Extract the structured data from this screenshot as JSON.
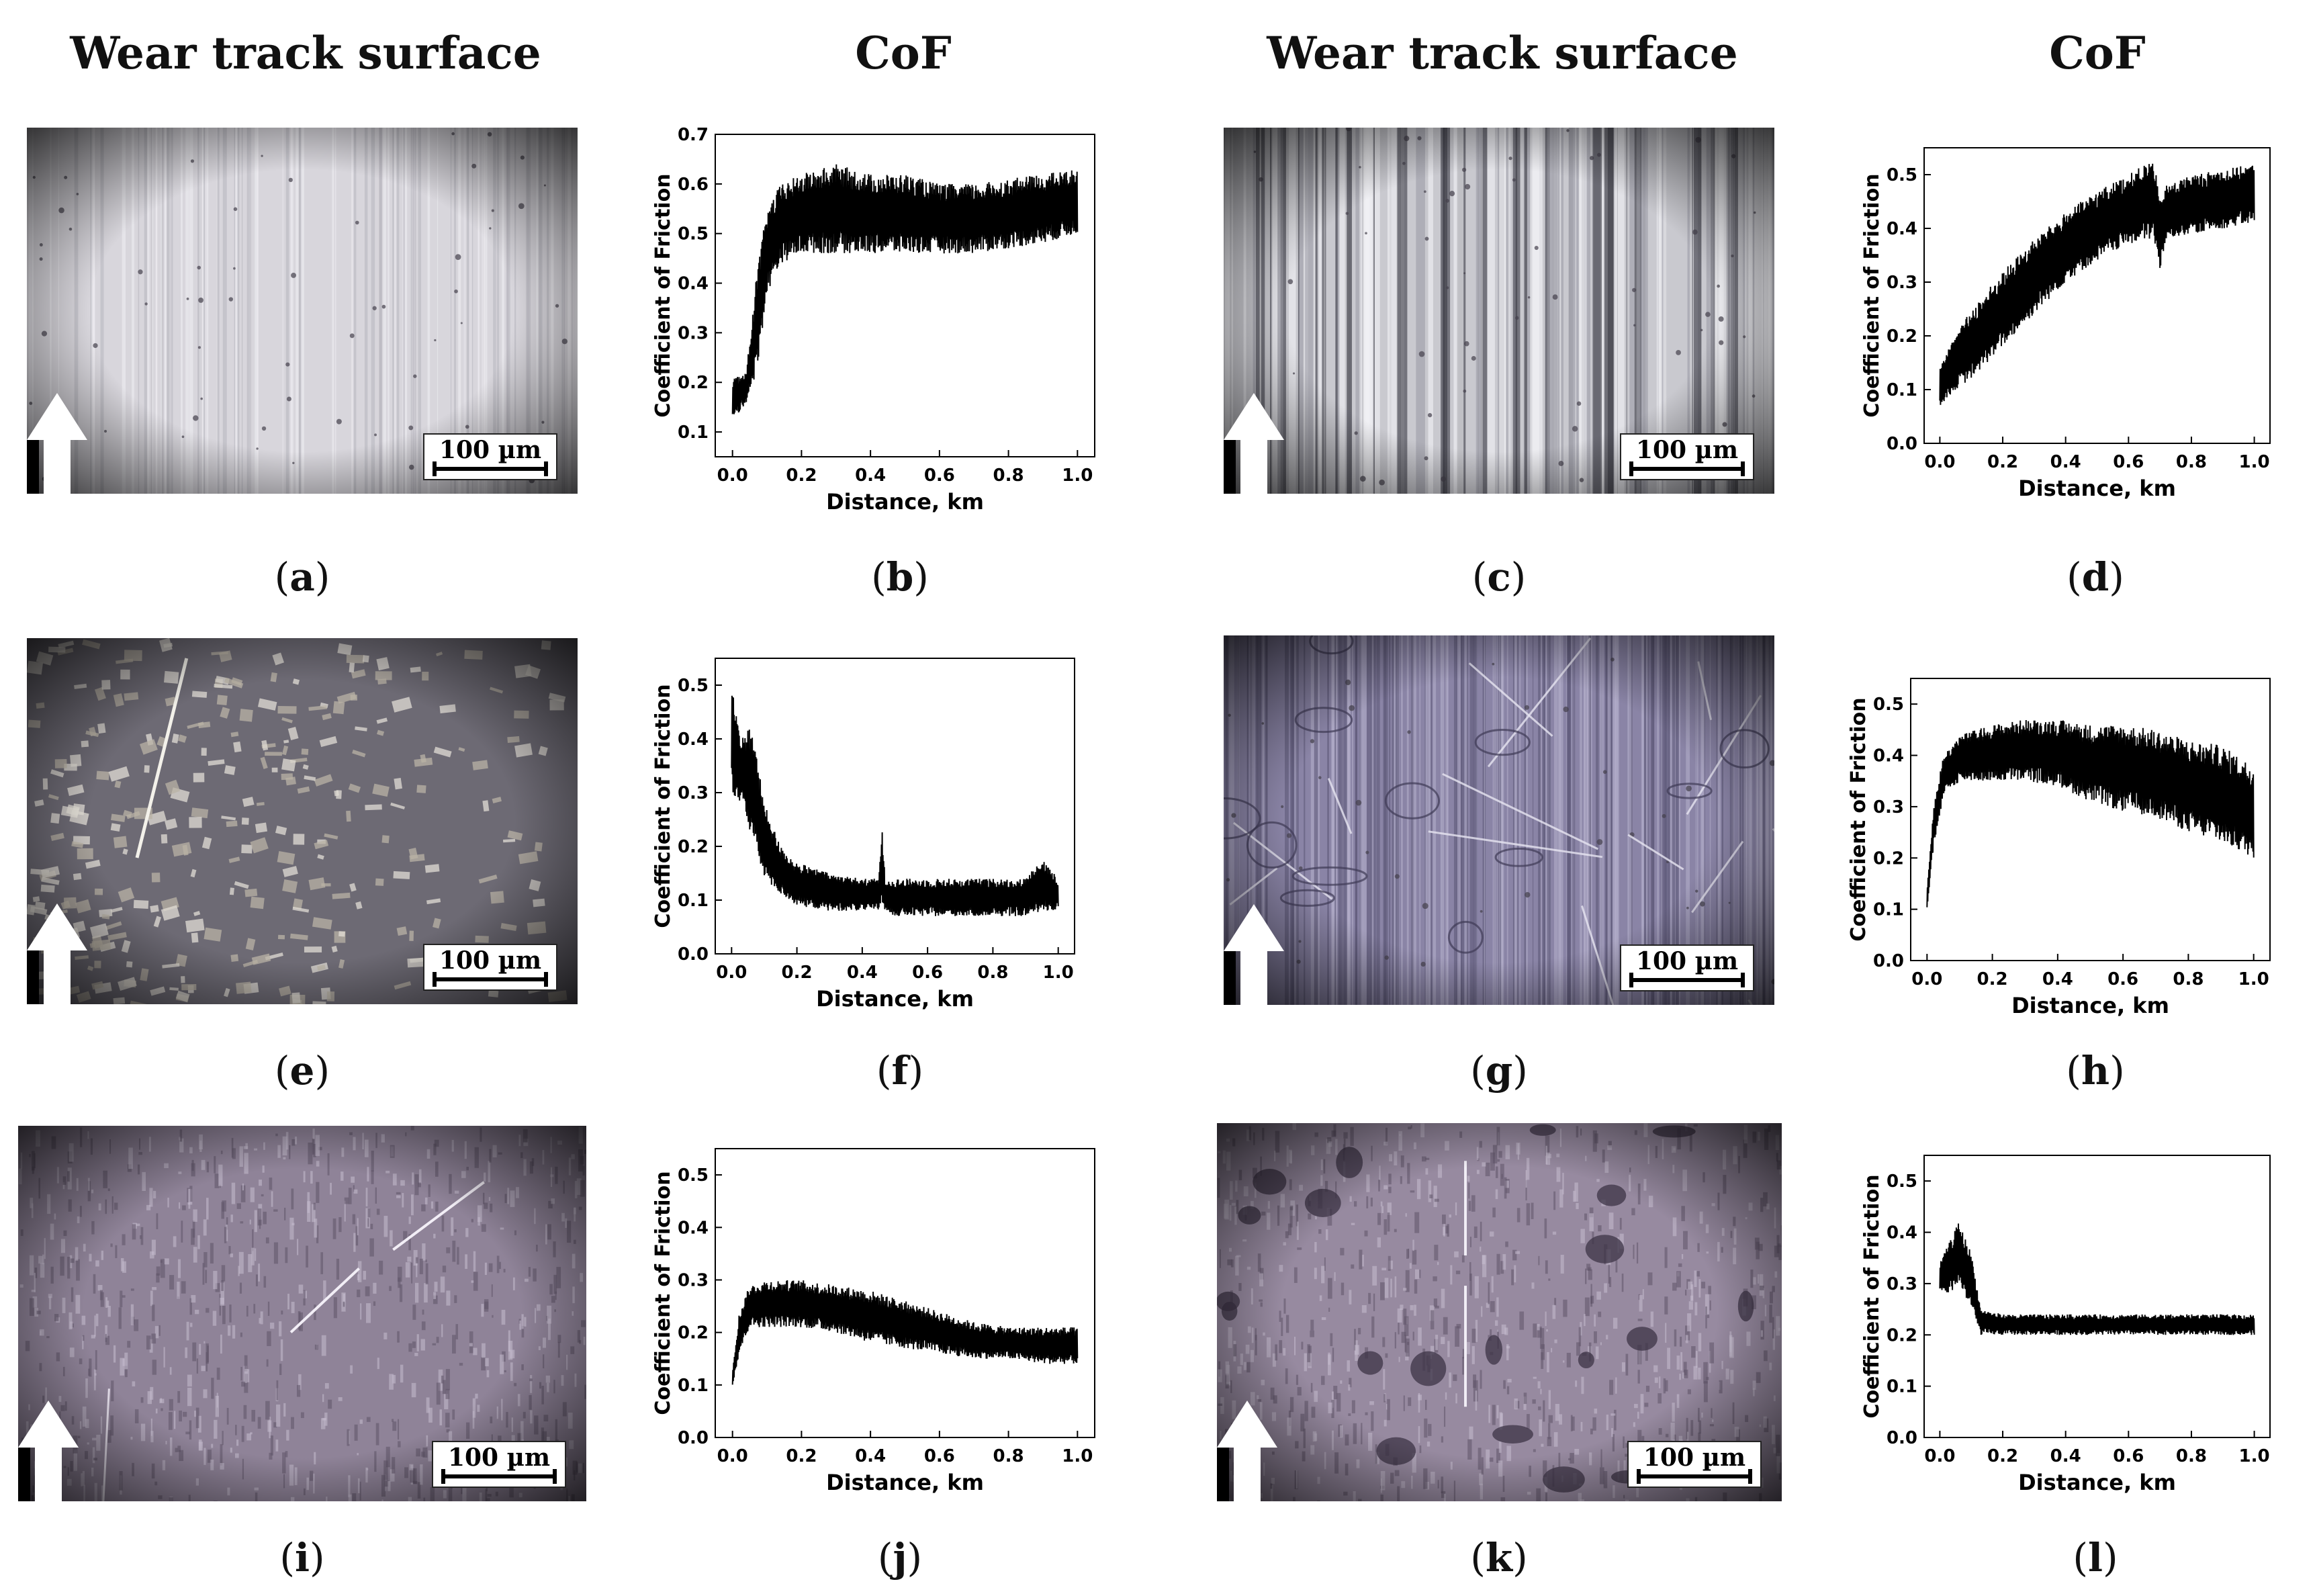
{
  "headers": [
    "Wear track surface",
    "CoF",
    "Wear track surface",
    "CoF"
  ],
  "scale_label": "100 µm",
  "images": [
    {
      "label": "a",
      "style": "light-stripes"
    },
    {
      "label": "c",
      "style": "dark-stripes"
    },
    {
      "label": "e",
      "style": "flakes"
    },
    {
      "label": "g",
      "style": "scratched-violet"
    },
    {
      "label": "i",
      "style": "violet-rough"
    },
    {
      "label": "k",
      "style": "violet-pits"
    }
  ],
  "chart_data": [
    {
      "label": "b",
      "type": "line",
      "xlabel": "Distance, km",
      "ylabel": "Coefficient of Friction",
      "xlim": [
        -0.05,
        1.05
      ],
      "ylim": [
        0.05,
        0.7
      ],
      "xticks": [
        "0.0",
        "0.2",
        "0.4",
        "0.6",
        "0.8",
        "1.0"
      ],
      "yticks": [
        "0.1",
        "0.2",
        "0.3",
        "0.4",
        "0.5",
        "0.6",
        "0.7"
      ],
      "x": [
        0.0,
        0.04,
        0.07,
        0.1,
        0.14,
        0.2,
        0.3,
        0.4,
        0.5,
        0.6,
        0.7,
        0.8,
        0.9,
        1.0
      ],
      "lo": [
        0.12,
        0.16,
        0.22,
        0.38,
        0.44,
        0.46,
        0.46,
        0.46,
        0.46,
        0.46,
        0.46,
        0.47,
        0.48,
        0.5
      ],
      "hi": [
        0.21,
        0.22,
        0.42,
        0.55,
        0.6,
        0.62,
        0.64,
        0.62,
        0.62,
        0.6,
        0.6,
        0.61,
        0.62,
        0.63
      ]
    },
    {
      "label": "d",
      "type": "line",
      "xlabel": "Distance, km",
      "ylabel": "Coefficient of Friction",
      "xlim": [
        -0.05,
        1.05
      ],
      "ylim": [
        0.0,
        0.55
      ],
      "xticks": [
        "0.0",
        "0.2",
        "0.4",
        "0.6",
        "0.8",
        "1.0"
      ],
      "yticks": [
        "0.0",
        "0.1",
        "0.2",
        "0.3",
        "0.4",
        "0.5"
      ],
      "x": [
        0.0,
        0.05,
        0.1,
        0.2,
        0.3,
        0.4,
        0.5,
        0.6,
        0.68,
        0.7,
        0.72,
        0.8,
        0.9,
        1.0
      ],
      "lo": [
        0.07,
        0.1,
        0.12,
        0.18,
        0.24,
        0.3,
        0.34,
        0.37,
        0.38,
        0.32,
        0.38,
        0.39,
        0.4,
        0.41
      ],
      "hi": [
        0.15,
        0.2,
        0.25,
        0.32,
        0.38,
        0.43,
        0.47,
        0.5,
        0.53,
        0.45,
        0.48,
        0.5,
        0.51,
        0.52
      ]
    },
    {
      "label": "f",
      "type": "line",
      "xlabel": "Distance, km",
      "ylabel": "Coefficient of Friction",
      "xlim": [
        -0.05,
        1.05
      ],
      "ylim": [
        0.0,
        0.55
      ],
      "xticks": [
        "0.0",
        "0.2",
        "0.4",
        "0.6",
        "0.8",
        "1.0"
      ],
      "yticks": [
        "0.0",
        "0.1",
        "0.2",
        "0.3",
        "0.4",
        "0.5"
      ],
      "x": [
        0.0,
        0.03,
        0.06,
        0.1,
        0.15,
        0.2,
        0.3,
        0.4,
        0.45,
        0.46,
        0.47,
        0.5,
        0.6,
        0.7,
        0.8,
        0.9,
        0.95,
        1.0
      ],
      "lo": [
        0.3,
        0.28,
        0.22,
        0.14,
        0.11,
        0.09,
        0.08,
        0.08,
        0.08,
        0.09,
        0.08,
        0.07,
        0.07,
        0.07,
        0.07,
        0.07,
        0.08,
        0.08
      ],
      "hi": [
        0.5,
        0.4,
        0.43,
        0.28,
        0.2,
        0.17,
        0.15,
        0.14,
        0.14,
        0.24,
        0.14,
        0.14,
        0.14,
        0.14,
        0.14,
        0.14,
        0.18,
        0.14
      ]
    },
    {
      "label": "h",
      "type": "line",
      "xlabel": "Distance, km",
      "ylabel": "Coefficient of Friction",
      "xlim": [
        -0.05,
        1.05
      ],
      "ylim": [
        0.0,
        0.55
      ],
      "xticks": [
        "0.0",
        "0.2",
        "0.4",
        "0.6",
        "0.8",
        "1.0"
      ],
      "yticks": [
        "0.0",
        "0.1",
        "0.2",
        "0.3",
        "0.4",
        "0.5"
      ],
      "x": [
        0.0,
        0.02,
        0.05,
        0.1,
        0.2,
        0.3,
        0.4,
        0.5,
        0.6,
        0.7,
        0.8,
        0.9,
        1.0
      ],
      "lo": [
        0.1,
        0.22,
        0.32,
        0.35,
        0.35,
        0.35,
        0.34,
        0.31,
        0.29,
        0.28,
        0.25,
        0.23,
        0.2
      ],
      "hi": [
        0.14,
        0.3,
        0.4,
        0.44,
        0.46,
        0.47,
        0.47,
        0.46,
        0.46,
        0.45,
        0.43,
        0.42,
        0.38
      ]
    },
    {
      "label": "j",
      "type": "line",
      "xlabel": "Distance, km",
      "ylabel": "Coefficient of Friction",
      "xlim": [
        -0.05,
        1.05
      ],
      "ylim": [
        0.0,
        0.55
      ],
      "xticks": [
        "0.0",
        "0.2",
        "0.4",
        "0.6",
        "0.8",
        "1.0"
      ],
      "yticks": [
        "0.0",
        "0.1",
        "0.2",
        "0.3",
        "0.4",
        "0.5"
      ],
      "x": [
        0.0,
        0.02,
        0.05,
        0.1,
        0.2,
        0.3,
        0.4,
        0.5,
        0.6,
        0.7,
        0.8,
        0.9,
        1.0
      ],
      "lo": [
        0.1,
        0.16,
        0.21,
        0.21,
        0.21,
        0.2,
        0.18,
        0.17,
        0.16,
        0.15,
        0.15,
        0.14,
        0.14
      ],
      "hi": [
        0.13,
        0.24,
        0.29,
        0.3,
        0.3,
        0.29,
        0.28,
        0.26,
        0.24,
        0.22,
        0.21,
        0.21,
        0.21
      ]
    },
    {
      "label": "l",
      "type": "line",
      "xlabel": "Distance, km",
      "ylabel": "Coefficient of Friction",
      "xlim": [
        -0.05,
        1.05
      ],
      "ylim": [
        0.0,
        0.55
      ],
      "xticks": [
        "0.0",
        "0.2",
        "0.4",
        "0.6",
        "0.8",
        "1.0"
      ],
      "yticks": [
        "0.0",
        "0.1",
        "0.2",
        "0.3",
        "0.4",
        "0.5"
      ],
      "x": [
        0.0,
        0.03,
        0.06,
        0.1,
        0.13,
        0.2,
        0.4,
        0.6,
        0.8,
        1.0
      ],
      "lo": [
        0.28,
        0.28,
        0.3,
        0.25,
        0.2,
        0.2,
        0.2,
        0.2,
        0.2,
        0.2
      ],
      "hi": [
        0.34,
        0.38,
        0.42,
        0.36,
        0.25,
        0.24,
        0.24,
        0.24,
        0.24,
        0.24
      ]
    }
  ]
}
